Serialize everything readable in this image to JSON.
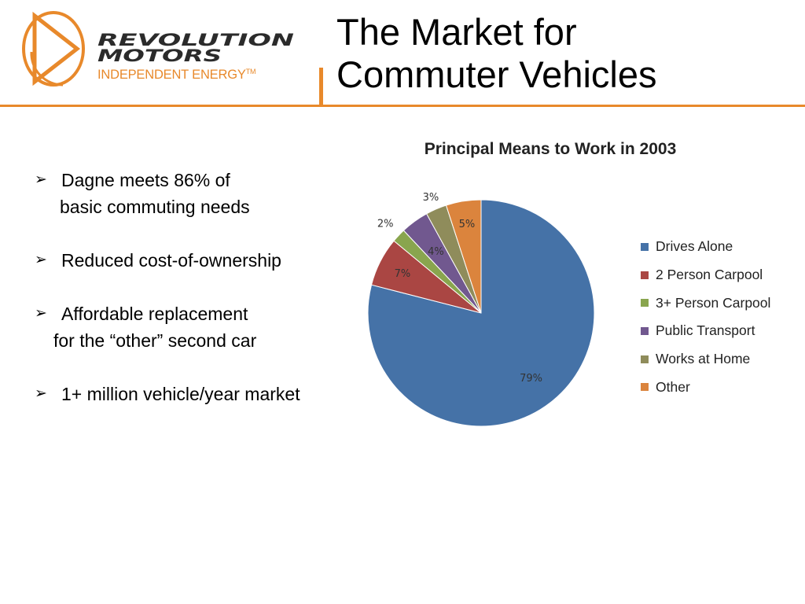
{
  "logo": {
    "wordmark_line1": "REVOLUTION",
    "wordmark_line2": "MOTORS",
    "tagline": "INDEPENDENT ENERGY",
    "tagline_tm": "TM",
    "brand_color": "#e8892b",
    "wordmark_color": "#2b2b2b"
  },
  "slide": {
    "title_line1": "The Market for",
    "title_line2": "Commuter Vehicles"
  },
  "bullets": [
    {
      "line1": "Dagne meets 86% of",
      "line2": "basic commuting needs"
    },
    {
      "line1": "Reduced cost-of-ownership",
      "line2": ""
    },
    {
      "line1": "Affordable replacement",
      "line2": "for the “other” second car"
    },
    {
      "line1": "1+ million vehicle/year market",
      "line2": ""
    }
  ],
  "bullet_icon": "arrowhead-bullet-icon",
  "chart_data": {
    "type": "pie",
    "title": "Principal Means to Work in 2003",
    "legend_position": "right",
    "categories": [
      "Drives Alone",
      "2 Person Carpool",
      "3+ Person Carpool",
      "Public Transport",
      "Works at Home",
      "Other"
    ],
    "values": [
      79,
      7,
      2,
      4,
      3,
      5
    ],
    "labels": [
      "79%",
      "7%",
      "2%",
      "4%",
      "3%",
      "5%"
    ],
    "colors": [
      "#4572a7",
      "#aa4643",
      "#89a54e",
      "#71588f",
      "#8f8c5b",
      "#db843d"
    ]
  }
}
